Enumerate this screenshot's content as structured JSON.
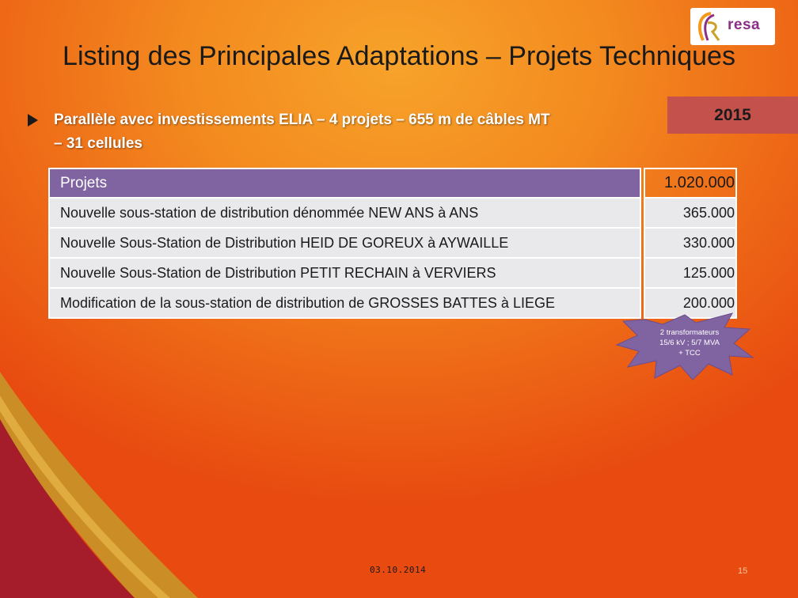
{
  "slide": {
    "title": "Listing des Principales Adaptations – Projets Techniques",
    "year": "2015",
    "bullet": {
      "line1": "Parallèle avec investissements ELIA – 4 projets – 655 m de câbles MT",
      "line2": "– 31 cellules"
    },
    "logo_text": "resa"
  },
  "table": {
    "header": {
      "label": "Projets",
      "amount": "1.020.000"
    },
    "rows": [
      {
        "label": "Nouvelle sous-station de distribution dénommée NEW ANS à ANS",
        "amount": "365.000"
      },
      {
        "label": "Nouvelle Sous-Station de Distribution HEID DE GOREUX à AYWAILLE",
        "amount": "330.000"
      },
      {
        "label": "Nouvelle Sous-Station de Distribution PETIT RECHAIN à VERVIERS",
        "amount": "125.000"
      },
      {
        "label": "Modification de la sous-station de distribution de GROSSES BATTES à LIEGE",
        "amount": "200.000"
      }
    ]
  },
  "callout": {
    "line1": "2 transformateurs",
    "line2": "15/6 kV ; 5/7 MVA",
    "line3": "+ TCC",
    "color": "#8064a2"
  },
  "footer": {
    "date": "03.10.2014",
    "page": "15"
  },
  "colors": {
    "accent_purple": "#8064a2",
    "year_box": "#c4514c",
    "logo": "#8b2e86"
  }
}
